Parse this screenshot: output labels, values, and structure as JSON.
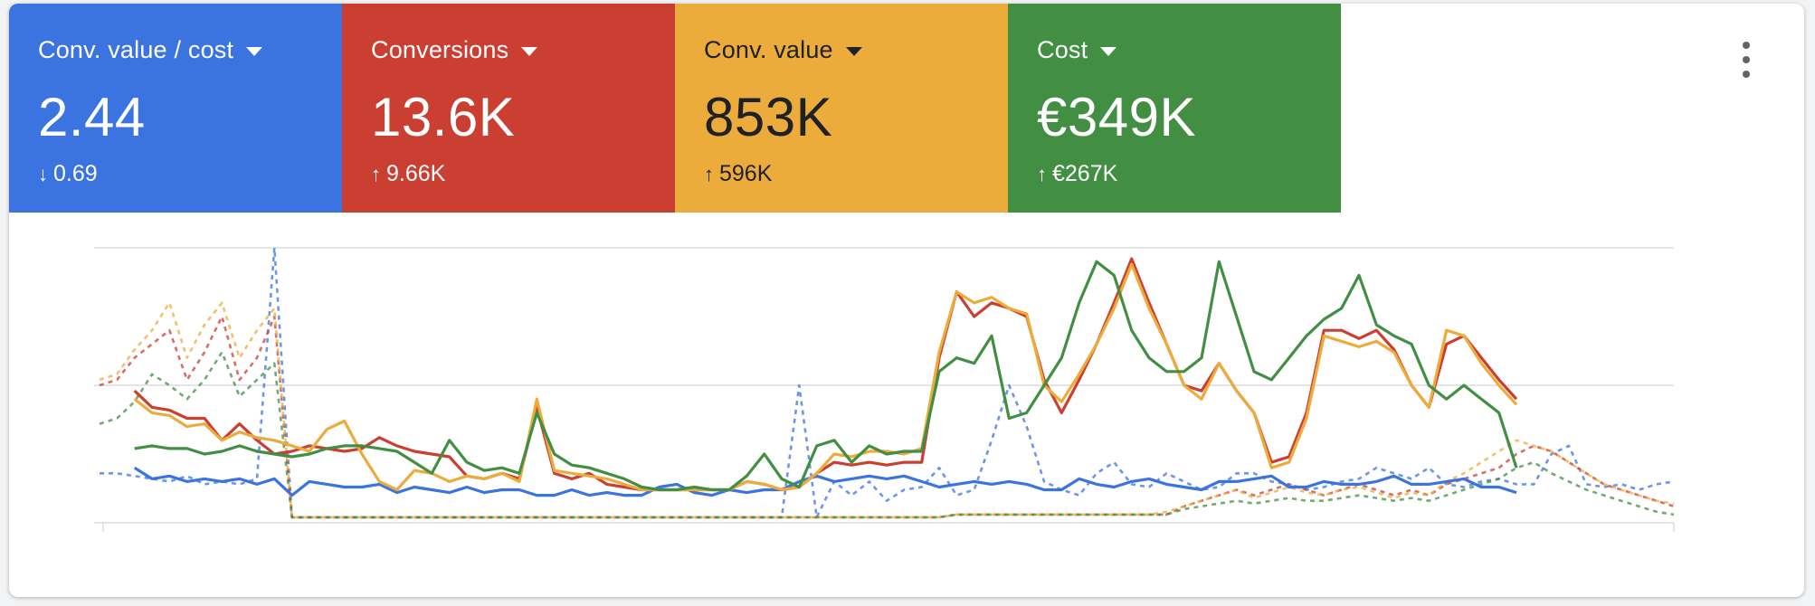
{
  "colors": {
    "blue": "#3b73e0",
    "red": "#cb3f32",
    "yellow": "#ecac3c",
    "green": "#428f44",
    "grid": "#dadce0"
  },
  "tiles": [
    {
      "label": "Conv. value / cost",
      "value": "2.44",
      "delta_dir": "down",
      "delta": "0.69",
      "color": "#3b73e0"
    },
    {
      "label": "Conversions",
      "value": "13.6K",
      "delta_dir": "up",
      "delta": "9.66K",
      "color": "#cb3f32"
    },
    {
      "label": "Conv. value",
      "value": "853K",
      "delta_dir": "up",
      "delta": "596K",
      "color": "#ecac3c"
    },
    {
      "label": "Cost",
      "value": "€349K",
      "delta_dir": "up",
      "delta": "€267K",
      "color": "#428f44"
    }
  ],
  "menu": {
    "icon": "more-vert-icon"
  },
  "chart_data": {
    "type": "line",
    "grid": true,
    "legend": "none",
    "ylim": [
      0,
      100
    ],
    "series": [
      {
        "key": "blue-current",
        "color": "#3b73e0",
        "dashed": false,
        "start": 2,
        "values": [
          20,
          16,
          17,
          15,
          16,
          15,
          16,
          14,
          16,
          10,
          15,
          14,
          13,
          13,
          14,
          11,
          13,
          12,
          11,
          13,
          11,
          12,
          12,
          10,
          10,
          12,
          10,
          11,
          10,
          10,
          13,
          14,
          11,
          10,
          12,
          11,
          12,
          12,
          15,
          17,
          15,
          16,
          17,
          16,
          17,
          15,
          13,
          14,
          15,
          14,
          15,
          14,
          12,
          12,
          16,
          14,
          13,
          15,
          16,
          14,
          13,
          12,
          15,
          15,
          16,
          17,
          13,
          13,
          15,
          14,
          14,
          15,
          17,
          14,
          14,
          15,
          16,
          13,
          13,
          11
        ]
      },
      {
        "key": "red-current",
        "color": "#cb3f32",
        "dashed": false,
        "start": 2,
        "values": [
          48,
          42,
          41,
          38,
          38,
          30,
          36,
          30,
          25,
          26,
          28,
          27,
          26,
          27,
          31,
          28,
          26,
          25,
          24,
          17,
          16,
          18,
          16,
          42,
          18,
          16,
          18,
          14,
          13,
          12,
          12,
          12,
          12,
          12,
          12,
          15,
          14,
          12,
          13,
          18,
          22,
          21,
          22,
          21,
          22,
          22,
          60,
          84,
          75,
          80,
          78,
          75,
          52,
          40,
          52,
          65,
          80,
          96,
          80,
          65,
          50,
          48,
          58,
          48,
          40,
          22,
          24,
          40,
          70,
          70,
          67,
          70,
          63,
          50,
          42,
          65,
          68,
          60,
          52,
          45
        ]
      },
      {
        "key": "yellow-current",
        "color": "#ecac3c",
        "dashed": false,
        "start": 2,
        "values": [
          45,
          40,
          39,
          35,
          36,
          30,
          33,
          31,
          30,
          28,
          26,
          34,
          37,
          25,
          15,
          12,
          19,
          18,
          15,
          17,
          16,
          18,
          15,
          45,
          19,
          18,
          17,
          16,
          14,
          12,
          12,
          12,
          12,
          12,
          12,
          15,
          14,
          12,
          13,
          18,
          25,
          24,
          26,
          26,
          25,
          27,
          62,
          84,
          80,
          82,
          78,
          76,
          50,
          44,
          54,
          65,
          78,
          94,
          78,
          65,
          50,
          45,
          58,
          48,
          40,
          20,
          22,
          38,
          68,
          66,
          64,
          66,
          62,
          50,
          42,
          70,
          68,
          58,
          50,
          43
        ]
      },
      {
        "key": "green-current",
        "color": "#428f44",
        "dashed": false,
        "start": 2,
        "values": [
          27,
          28,
          27,
          27,
          25,
          26,
          28,
          26,
          25,
          24,
          25,
          27,
          28,
          28,
          27,
          26,
          22,
          18,
          30,
          22,
          19,
          20,
          18,
          40,
          25,
          21,
          20,
          18,
          16,
          13,
          12,
          12,
          13,
          12,
          12,
          17,
          25,
          16,
          13,
          28,
          30,
          22,
          28,
          25,
          26,
          26,
          55,
          60,
          58,
          68,
          38,
          40,
          50,
          60,
          80,
          95,
          90,
          70,
          60,
          55,
          55,
          60,
          95,
          75,
          55,
          52,
          60,
          68,
          74,
          78,
          90,
          72,
          68,
          65,
          50,
          45,
          50,
          45,
          40,
          20
        ]
      },
      {
        "key": "blue-previous",
        "color": "#3b73e0",
        "dashed": true,
        "start": 0,
        "values": [
          18,
          18,
          17,
          16,
          15,
          17,
          14,
          15,
          14,
          16,
          100,
          2,
          2,
          2,
          2,
          2,
          2,
          2,
          2,
          2,
          2,
          2,
          2,
          2,
          2,
          2,
          2,
          2,
          2,
          2,
          2,
          2,
          2,
          2,
          2,
          2,
          2,
          2,
          2,
          2,
          50,
          2,
          15,
          10,
          15,
          8,
          12,
          13,
          20,
          10,
          12,
          30,
          50,
          35,
          15,
          12,
          10,
          18,
          22,
          14,
          13,
          18,
          15,
          12,
          13,
          18,
          18,
          15,
          14,
          12,
          13,
          15,
          16,
          20,
          18,
          16,
          20,
          14,
          13,
          15,
          16,
          14,
          14,
          25,
          28,
          14,
          13,
          14,
          12,
          14,
          15
        ]
      },
      {
        "key": "red-previous",
        "color": "#cb3f32",
        "dashed": true,
        "start": 0,
        "values": [
          50,
          52,
          60,
          65,
          70,
          52,
          62,
          75,
          52,
          60,
          75,
          2,
          2,
          2,
          2,
          2,
          2,
          2,
          2,
          2,
          2,
          2,
          2,
          2,
          2,
          2,
          2,
          2,
          2,
          2,
          2,
          2,
          2,
          2,
          2,
          2,
          2,
          2,
          2,
          2,
          2,
          2,
          2,
          2,
          2,
          2,
          2,
          2,
          2,
          3,
          3,
          3,
          3,
          3,
          3,
          3,
          3,
          3,
          3,
          3,
          3,
          3,
          6,
          8,
          10,
          12,
          10,
          12,
          14,
          12,
          10,
          12,
          14,
          12,
          10,
          12,
          10,
          14,
          16,
          18,
          20,
          25,
          28,
          26,
          22,
          18,
          14,
          12,
          10,
          8,
          6
        ]
      },
      {
        "key": "yellow-previous",
        "color": "#ecac3c",
        "dashed": true,
        "start": 0,
        "values": [
          52,
          54,
          63,
          70,
          80,
          60,
          72,
          80,
          60,
          70,
          78,
          2,
          2,
          2,
          2,
          2,
          2,
          2,
          2,
          2,
          2,
          2,
          2,
          2,
          2,
          2,
          2,
          2,
          2,
          2,
          2,
          2,
          2,
          2,
          2,
          2,
          2,
          2,
          2,
          2,
          2,
          2,
          2,
          2,
          2,
          2,
          2,
          2,
          2,
          3,
          3,
          3,
          3,
          3,
          3,
          3,
          3,
          3,
          3,
          3,
          3,
          4,
          6,
          8,
          10,
          12,
          9,
          11,
          13,
          11,
          10,
          12,
          13,
          11,
          9,
          11,
          10,
          15,
          18,
          22,
          26,
          30,
          28,
          26,
          22,
          18,
          14,
          12,
          10,
          8,
          7
        ]
      },
      {
        "key": "green-previous",
        "color": "#428f44",
        "dashed": true,
        "start": 0,
        "values": [
          36,
          38,
          44,
          54,
          50,
          45,
          52,
          62,
          46,
          52,
          58,
          2,
          2,
          2,
          2,
          2,
          2,
          2,
          2,
          2,
          2,
          2,
          2,
          2,
          2,
          2,
          2,
          2,
          2,
          2,
          2,
          2,
          2,
          2,
          2,
          2,
          2,
          2,
          2,
          2,
          2,
          2,
          2,
          2,
          2,
          2,
          2,
          2,
          2,
          3,
          3,
          3,
          3,
          3,
          3,
          3,
          3,
          3,
          3,
          3,
          3,
          3,
          5,
          6,
          7,
          8,
          7,
          8,
          9,
          8,
          8,
          9,
          10,
          9,
          8,
          9,
          8,
          10,
          12,
          14,
          16,
          20,
          22,
          18,
          15,
          12,
          10,
          8,
          6,
          4,
          3
        ]
      }
    ]
  }
}
